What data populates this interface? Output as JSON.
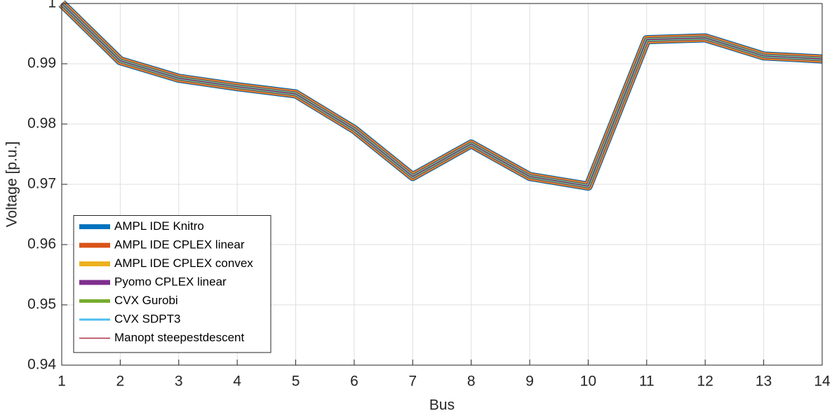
{
  "chart_data": {
    "type": "line",
    "xlabel": "Bus",
    "ylabel": "Voltage [p.u.]",
    "x": [
      1,
      2,
      3,
      4,
      5,
      6,
      7,
      8,
      9,
      10,
      11,
      12,
      13,
      14
    ],
    "series": [
      {
        "name": "AMPL IDE Knitro",
        "color": "#0072BD",
        "values": [
          1.0,
          0.9905,
          0.9876,
          0.9862,
          0.985,
          0.9791,
          0.9713,
          0.9767,
          0.9713,
          0.9697,
          0.994,
          0.9943,
          0.9913,
          0.9908
        ]
      },
      {
        "name": "AMPL IDE CPLEX linear",
        "color": "#D95319",
        "values": [
          1.0,
          0.9905,
          0.9876,
          0.9862,
          0.985,
          0.9791,
          0.9713,
          0.9767,
          0.9713,
          0.9697,
          0.994,
          0.9943,
          0.9913,
          0.9908
        ]
      },
      {
        "name": "AMPL IDE CPLEX convex",
        "color": "#EDB120",
        "values": [
          1.0,
          0.9905,
          0.9876,
          0.9862,
          0.985,
          0.9791,
          0.9713,
          0.9767,
          0.9713,
          0.9697,
          0.994,
          0.9943,
          0.9913,
          0.9908
        ]
      },
      {
        "name": "Pyomo CPLEX linear",
        "color": "#7E2F8E",
        "values": [
          1.0,
          0.9905,
          0.9876,
          0.9862,
          0.985,
          0.9791,
          0.9713,
          0.9767,
          0.9713,
          0.9697,
          0.994,
          0.9943,
          0.9913,
          0.9908
        ]
      },
      {
        "name": "CVX Gurobi",
        "color": "#77AC30",
        "values": [
          1.0,
          0.9905,
          0.9876,
          0.9862,
          0.985,
          0.9791,
          0.9713,
          0.9767,
          0.9713,
          0.9697,
          0.994,
          0.9943,
          0.9913,
          0.9908
        ]
      },
      {
        "name": "CVX SDPT3",
        "color": "#4DBEEE",
        "values": [
          1.0,
          0.9905,
          0.9876,
          0.9862,
          0.985,
          0.9791,
          0.9713,
          0.9767,
          0.9713,
          0.9697,
          0.994,
          0.9943,
          0.9913,
          0.9908
        ]
      },
      {
        "name": "Manopt steepestdescent",
        "color": "#A2142F",
        "values": [
          1.0,
          0.9905,
          0.9876,
          0.9862,
          0.985,
          0.9791,
          0.9713,
          0.9767,
          0.9713,
          0.9697,
          0.994,
          0.9943,
          0.9913,
          0.9908
        ]
      }
    ],
    "xlim": [
      1,
      14
    ],
    "xticks": [
      1,
      2,
      3,
      4,
      5,
      6,
      7,
      8,
      9,
      10,
      11,
      12,
      13,
      14
    ],
    "ylim": [
      0.94,
      1
    ],
    "yticks": [
      0.94,
      0.95,
      0.96,
      0.97,
      0.98,
      0.99,
      1
    ],
    "grid": true,
    "legend": "lower-left"
  }
}
